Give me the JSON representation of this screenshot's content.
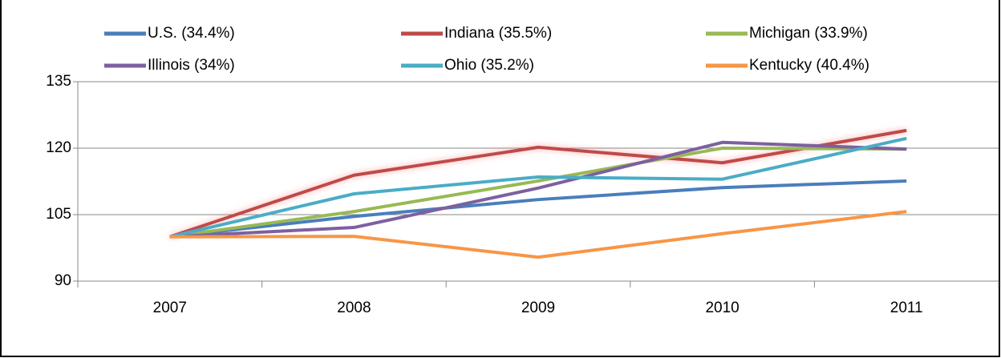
{
  "chart_data": {
    "type": "line",
    "categories": [
      "2007",
      "2008",
      "2009",
      "2010",
      "2011"
    ],
    "series": [
      {
        "name": "U.S. (34.4%)",
        "color": "#4a7ebb",
        "values": [
          100,
          104.6,
          108.4,
          111.1,
          112.6
        ]
      },
      {
        "name": "Indiana (35.5%)",
        "color": "#be4b48",
        "values": [
          100,
          113.9,
          120.2,
          116.7,
          124.0
        ]
      },
      {
        "name": "Michigan (33.9%)",
        "color": "#98b954",
        "values": [
          100,
          105.7,
          112.6,
          120.0,
          119.8
        ]
      },
      {
        "name": "Illinois (34%)",
        "color": "#7d60a0",
        "values": [
          100,
          102.1,
          111.0,
          121.3,
          119.8
        ]
      },
      {
        "name": "Ohio (35.2%)",
        "color": "#4bacc6",
        "values": [
          100,
          109.7,
          113.5,
          113.0,
          122.2
        ]
      },
      {
        "name": "Kentucky (40.4%)",
        "color": "#f79646",
        "values": [
          100,
          100.1,
          95.4,
          100.7,
          105.7
        ]
      }
    ],
    "ylim": [
      90,
      135
    ],
    "yticks": [
      90,
      105,
      120,
      135
    ],
    "grid": true,
    "legend": "top"
  }
}
